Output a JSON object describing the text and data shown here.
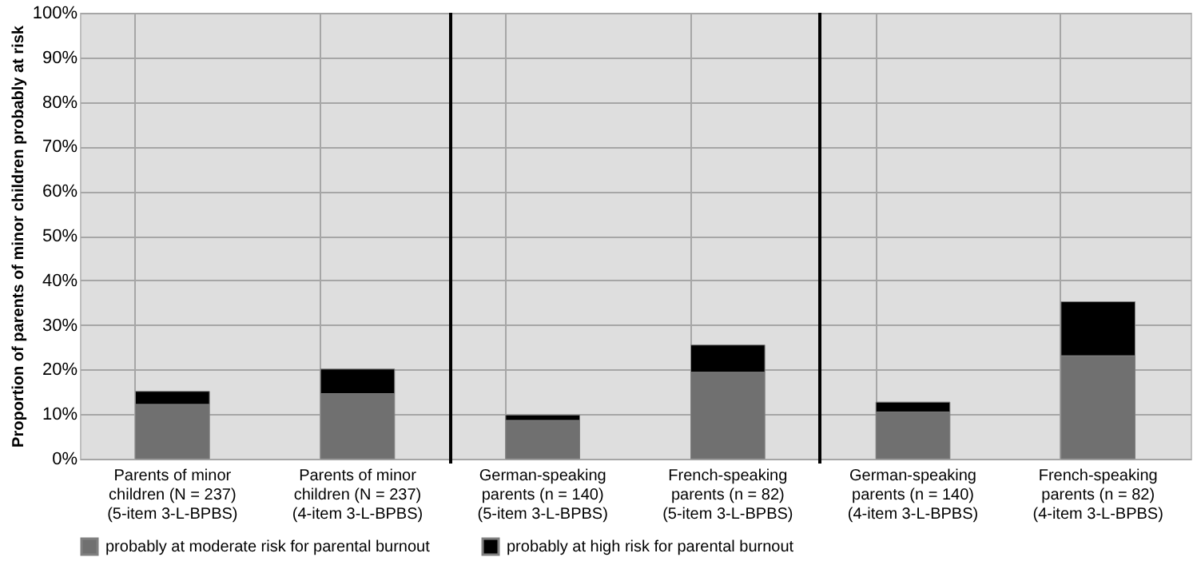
{
  "chart_data": {
    "type": "bar",
    "stacked": true,
    "ylabel": "Proportion of parents of minor children probably at risk",
    "categories": [
      "Parents of minor children (N = 237) (5-item 3-L-BPBS)",
      "Parents of minor children (N = 237) (4-item 3-L-BPBS)",
      "German-speaking parents (n = 140) (5-item 3-L-BPBS)",
      "French-speaking parents (n = 82) (5-item 3-L-BPBS)",
      "German-speaking parents (n = 140) (4-item 3-L-BPBS)",
      "French-speaking parents (n = 82) (4-item 3-L-BPBS)"
    ],
    "series": [
      {
        "name": "probably at moderate risk for parental burnout",
        "color": "#707070",
        "values": [
          12.2,
          14.6,
          8.6,
          19.4,
          10.5,
          23.1
        ]
      },
      {
        "name": "probably at high risk for parental burnout",
        "color": "#000000",
        "values": [
          2.9,
          5.5,
          1.2,
          6.1,
          2.2,
          12.1
        ]
      }
    ],
    "ylim": [
      0,
      100
    ],
    "yticks": [
      {
        "value": 0,
        "label": "0%"
      },
      {
        "value": 10,
        "label": "10%"
      },
      {
        "value": 20,
        "label": "20%"
      },
      {
        "value": 30,
        "label": "30%"
      },
      {
        "value": 40,
        "label": "40%"
      },
      {
        "value": 50,
        "label": "50%"
      },
      {
        "value": 60,
        "label": "60%"
      },
      {
        "value": 70,
        "label": "70%"
      },
      {
        "value": 80,
        "label": "80%"
      },
      {
        "value": 90,
        "label": "90%"
      },
      {
        "value": 100,
        "label": "100%"
      }
    ],
    "grid": true,
    "legend": "bottom"
  }
}
